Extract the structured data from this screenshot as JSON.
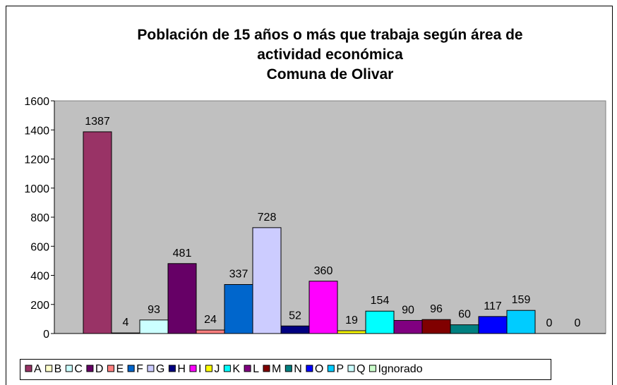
{
  "chart_data": {
    "type": "bar",
    "title": "Población de 15 años o más que trabaja según área de actividad económica",
    "subtitle": "Comuna de Olivar",
    "ylim": [
      0,
      1600
    ],
    "yticks": [
      0,
      200,
      400,
      600,
      800,
      1000,
      1200,
      1400,
      1600
    ],
    "grid": false,
    "legend": "bottom",
    "series": [
      {
        "name": "A",
        "color": "#993366",
        "values": [
          1387
        ]
      },
      {
        "name": "B",
        "color": "#ffffcc",
        "values": [
          4
        ]
      },
      {
        "name": "C",
        "color": "#ccffff",
        "values": [
          93
        ]
      },
      {
        "name": "D",
        "color": "#660066",
        "values": [
          481
        ]
      },
      {
        "name": "E",
        "color": "#ff8080",
        "values": [
          24
        ]
      },
      {
        "name": "F",
        "color": "#0066cc",
        "values": [
          337
        ]
      },
      {
        "name": "G",
        "color": "#ccccff",
        "values": [
          728
        ]
      },
      {
        "name": "H",
        "color": "#000080",
        "values": [
          52
        ]
      },
      {
        "name": "I",
        "color": "#ff00ff",
        "values": [
          360
        ]
      },
      {
        "name": "J",
        "color": "#ffff00",
        "values": [
          19
        ]
      },
      {
        "name": "K",
        "color": "#00ffff",
        "values": [
          154
        ]
      },
      {
        "name": "L",
        "color": "#800080",
        "values": [
          90
        ]
      },
      {
        "name": "M",
        "color": "#800000",
        "values": [
          96
        ]
      },
      {
        "name": "N",
        "color": "#008080",
        "values": [
          60
        ]
      },
      {
        "name": "O",
        "color": "#0000ff",
        "values": [
          117
        ]
      },
      {
        "name": "P",
        "color": "#00ccff",
        "values": [
          159
        ]
      },
      {
        "name": "Q",
        "color": "#ccffff",
        "values": [
          0
        ]
      },
      {
        "name": "Ignorado",
        "color": "#ccffcc",
        "values": [
          0
        ]
      }
    ]
  }
}
